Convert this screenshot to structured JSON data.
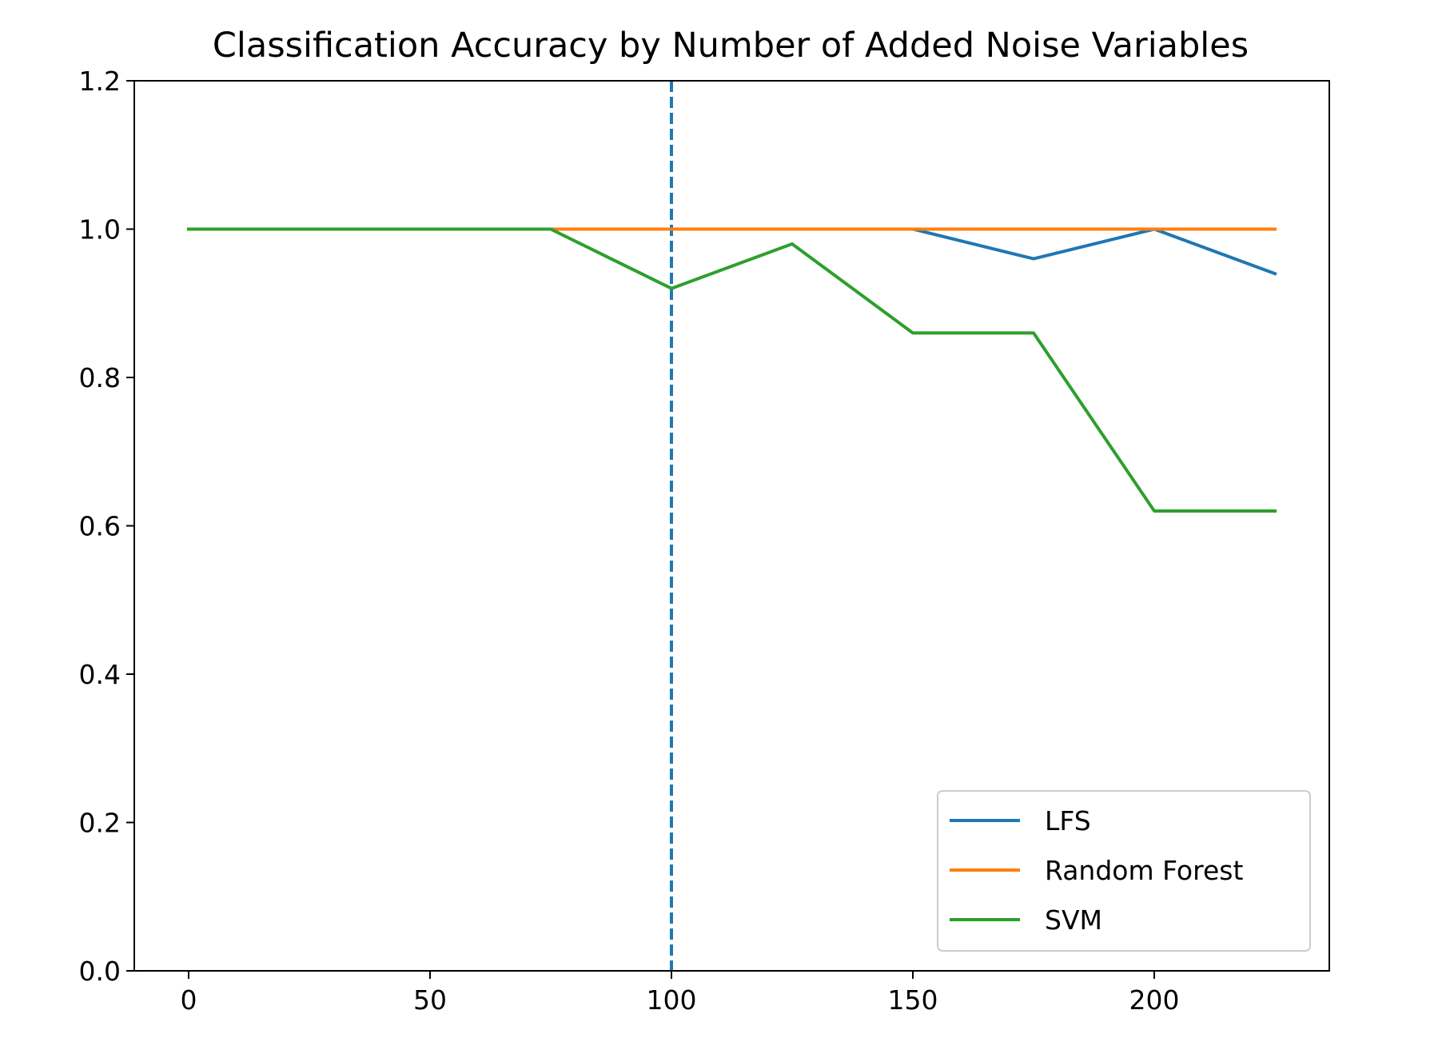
{
  "chart_data": {
    "type": "line",
    "title": "Classification Accuracy by Number of Added Noise Variables",
    "xlabel": "",
    "ylabel": "",
    "x": [
      0,
      25,
      50,
      75,
      100,
      125,
      150,
      175,
      200,
      225
    ],
    "xlim": [
      -11.25,
      236.25
    ],
    "ylim": [
      0.0,
      1.2
    ],
    "x_ticks": [
      0,
      50,
      100,
      150,
      200
    ],
    "y_ticks": [
      0.0,
      0.2,
      0.4,
      0.6,
      0.8,
      1.0,
      1.2
    ],
    "x_tick_labels": [
      "0",
      "50",
      "100",
      "150",
      "200"
    ],
    "y_tick_labels": [
      "0.0",
      "0.2",
      "0.4",
      "0.6",
      "0.8",
      "1.0",
      "1.2"
    ],
    "grid": false,
    "legend_position": "lower-right",
    "series": [
      {
        "name": "LFS",
        "color": "#1f77b4",
        "values": [
          1.0,
          1.0,
          1.0,
          1.0,
          1.0,
          1.0,
          1.0,
          0.96,
          1.0,
          0.94
        ]
      },
      {
        "name": "Random Forest",
        "color": "#ff7f0e",
        "values": [
          1.0,
          1.0,
          1.0,
          1.0,
          1.0,
          1.0,
          1.0,
          1.0,
          1.0,
          1.0
        ]
      },
      {
        "name": "SVM",
        "color": "#2ca02c",
        "values": [
          1.0,
          1.0,
          1.0,
          1.0,
          0.92,
          0.98,
          0.86,
          0.86,
          0.62,
          0.62
        ]
      }
    ],
    "reference_line": {
      "orientation": "vertical",
      "x": 100,
      "style": "dashed",
      "color": "#1f77b4"
    }
  }
}
